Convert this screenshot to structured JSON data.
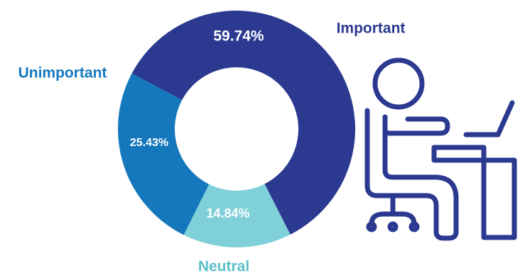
{
  "chart_data": {
    "type": "pie",
    "variant": "donut",
    "slices": [
      {
        "label": "Important",
        "value": 59.74,
        "value_label": "59.74%",
        "color": "#2b3990"
      },
      {
        "label": "Neutral",
        "value": 14.84,
        "value_label": "14.84%",
        "color": "#7fd0d8"
      },
      {
        "label": "Unimportant",
        "value": 25.43,
        "value_label": "25.43%",
        "color": "#1578bd"
      }
    ],
    "legend": "none",
    "label_colors": {
      "Important": "#2b3990",
      "Neutral": "#5bbfc8",
      "Unimportant": "#1578bd"
    }
  },
  "illustration": {
    "icon": "person-at-desk-icon",
    "color": "#2b3990"
  }
}
